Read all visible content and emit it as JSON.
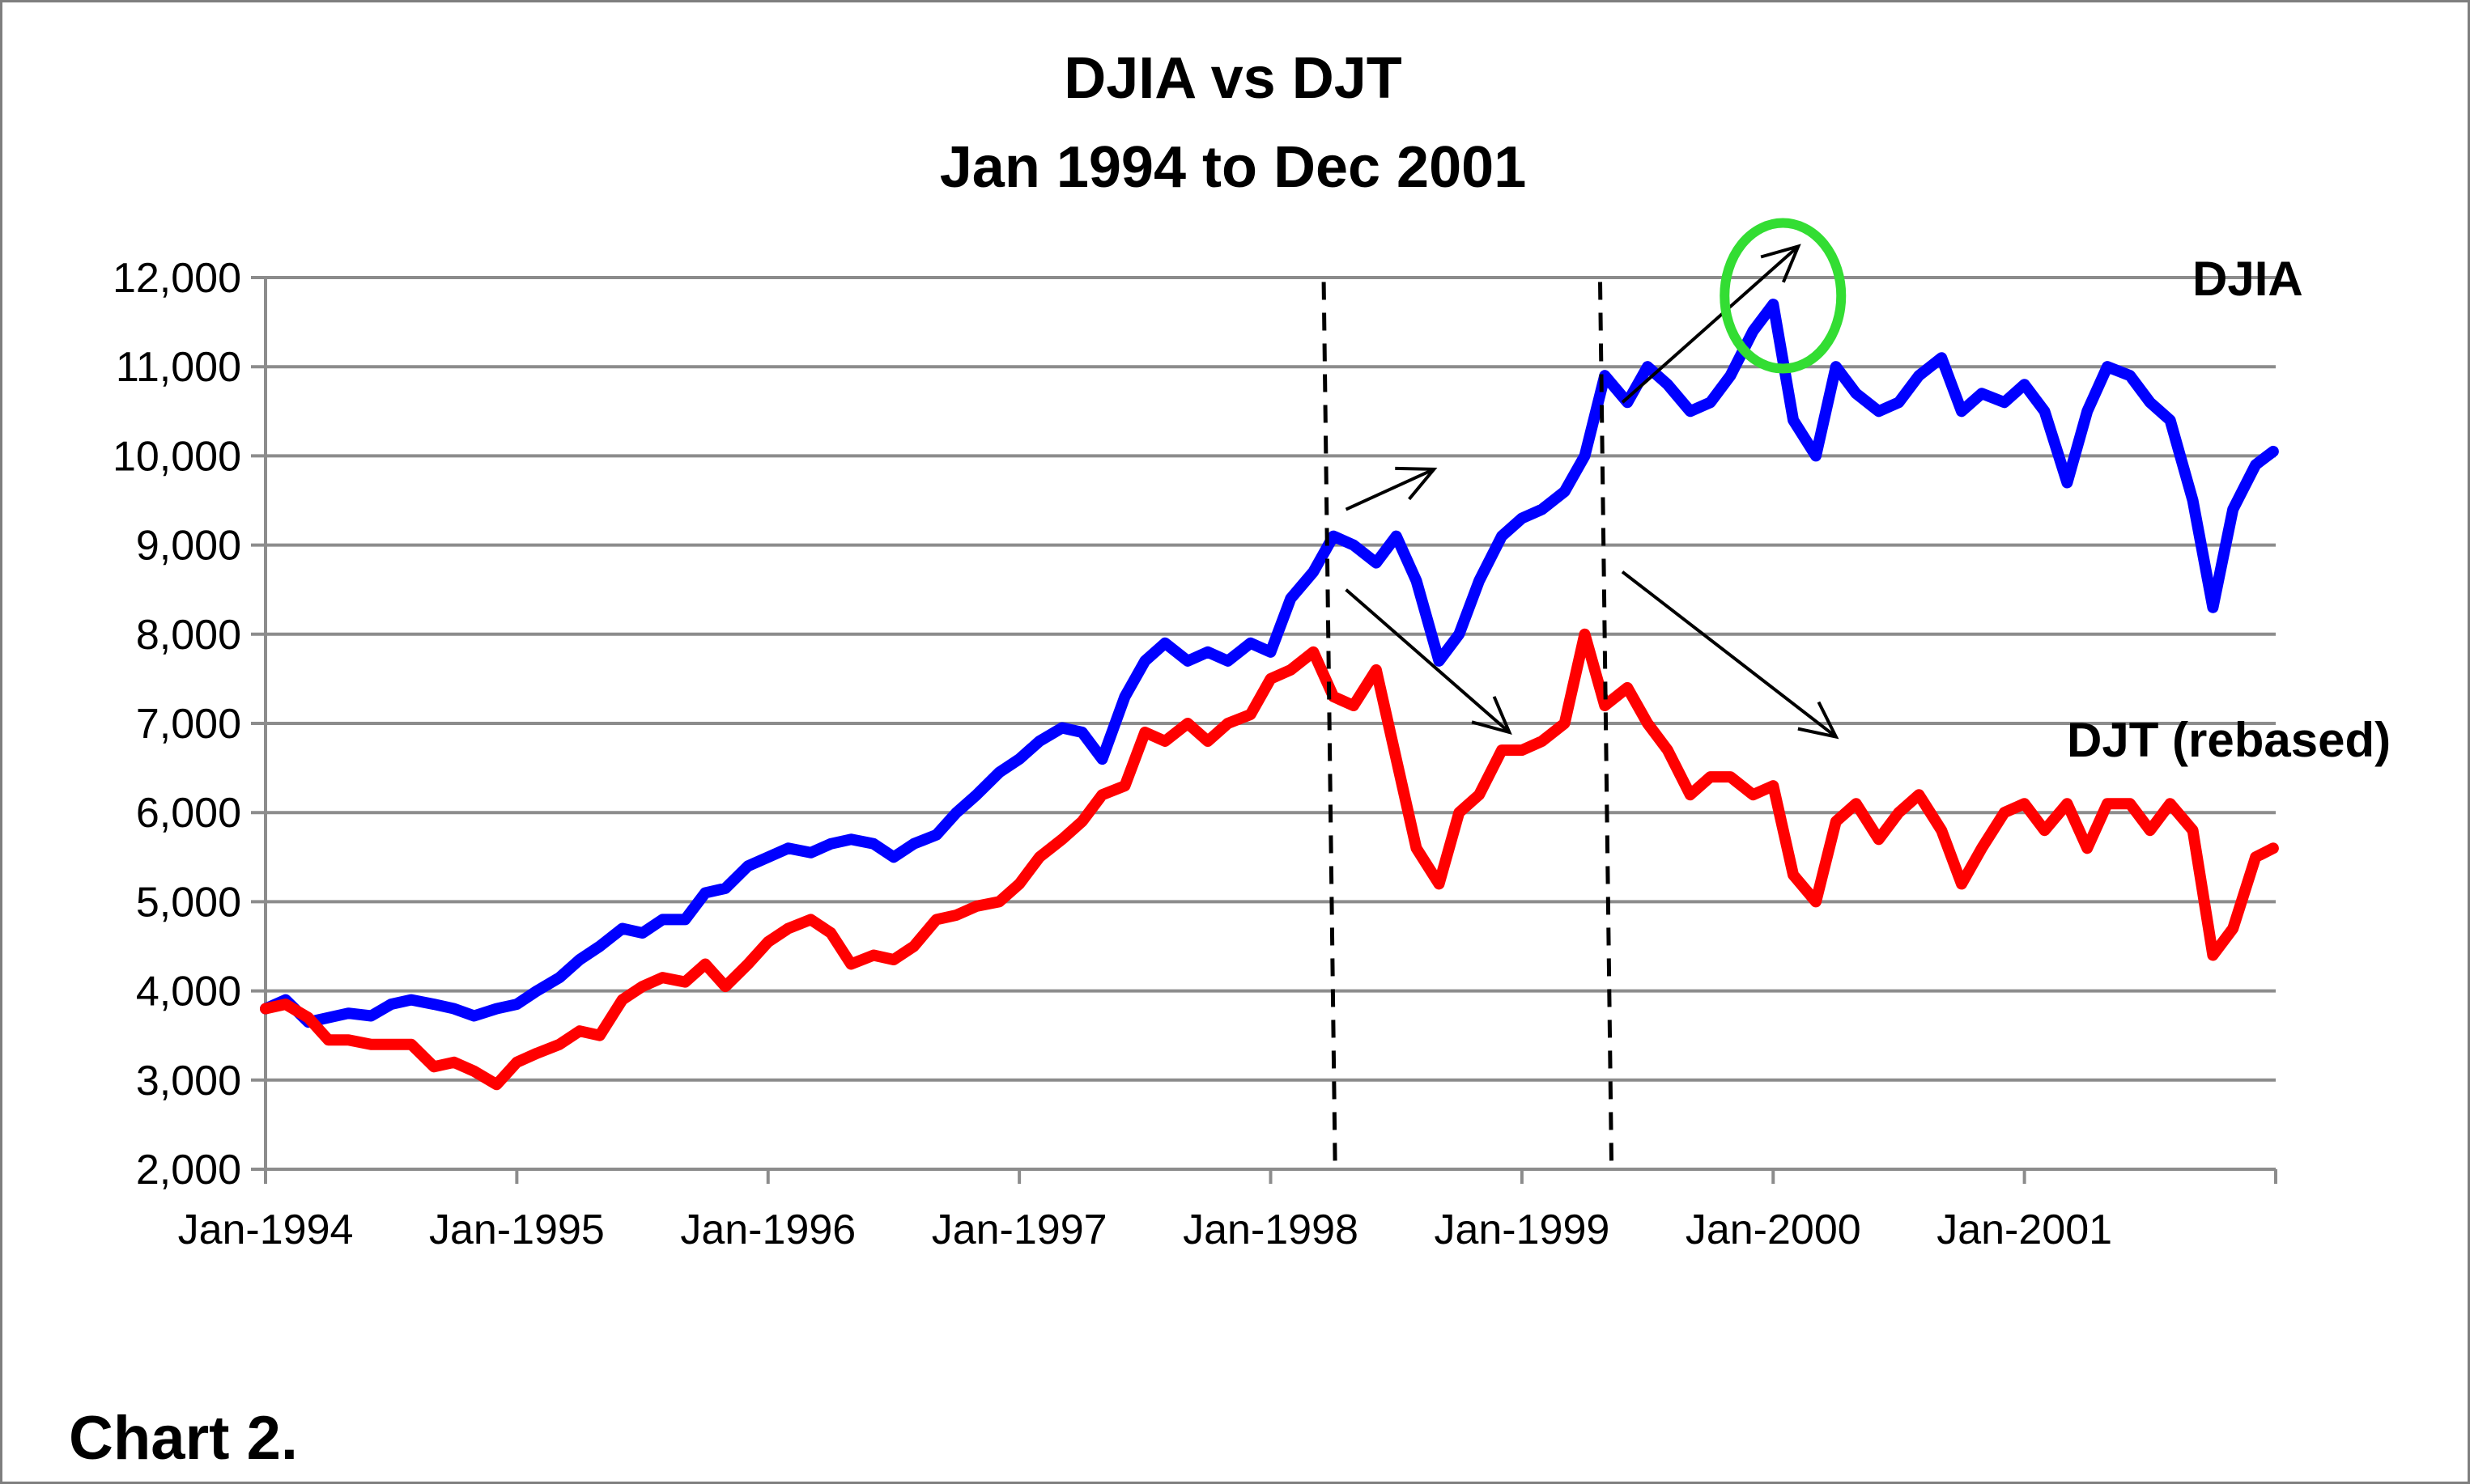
{
  "chart_data": {
    "type": "line",
    "title": "DJIA vs DJT",
    "subtitle": "Jan 1994 to Dec 2001",
    "caption": "Chart 2.",
    "xlabel": "",
    "ylabel": "",
    "ylim": [
      2000,
      12000
    ],
    "yticks": [
      2000,
      3000,
      4000,
      5000,
      6000,
      7000,
      8000,
      9000,
      10000,
      11000,
      12000
    ],
    "ytick_labels": [
      "2,000",
      "3,000",
      "4,000",
      "5,000",
      "6,000",
      "7,000",
      "8,000",
      "9,000",
      "10,000",
      "11,000",
      "12,000"
    ],
    "xlim": [
      1994.0,
      2002.0
    ],
    "xticks": [
      1994,
      1995,
      1996,
      1997,
      1998,
      1999,
      2000,
      2001
    ],
    "xtick_labels": [
      "Jan-1994",
      "Jan-1995",
      "Jan-1996",
      "Jan-1997",
      "Jan-1998",
      "Jan-1999",
      "Jan-2000",
      "Jan-2001"
    ],
    "grid": true,
    "series": [
      {
        "name": "DJIA",
        "color": "#0000ff",
        "x": [
          1994.0,
          1994.08,
          1994.17,
          1994.25,
          1994.33,
          1994.42,
          1994.5,
          1994.58,
          1994.67,
          1994.75,
          1994.83,
          1994.92,
          1995.0,
          1995.08,
          1995.17,
          1995.25,
          1995.33,
          1995.42,
          1995.5,
          1995.58,
          1995.67,
          1995.75,
          1995.83,
          1995.92,
          1996.0,
          1996.08,
          1996.17,
          1996.25,
          1996.33,
          1996.42,
          1996.5,
          1996.58,
          1996.67,
          1996.75,
          1996.83,
          1996.92,
          1997.0,
          1997.08,
          1997.17,
          1997.25,
          1997.33,
          1997.42,
          1997.5,
          1997.58,
          1997.67,
          1997.75,
          1997.83,
          1997.92,
          1998.0,
          1998.08,
          1998.17,
          1998.25,
          1998.33,
          1998.42,
          1998.5,
          1998.58,
          1998.67,
          1998.75,
          1998.83,
          1998.92,
          1999.0,
          1999.08,
          1999.17,
          1999.25,
          1999.33,
          1999.42,
          1999.5,
          1999.58,
          1999.67,
          1999.75,
          1999.83,
          1999.92,
          2000.0,
          2000.08,
          2000.17,
          2000.25,
          2000.33,
          2000.42,
          2000.5,
          2000.58,
          2000.67,
          2000.75,
          2000.83,
          2000.92,
          2001.0,
          2001.08,
          2001.17,
          2001.25,
          2001.33,
          2001.42,
          2001.5,
          2001.58,
          2001.67,
          2001.75,
          2001.83,
          2001.92,
          2001.99
        ],
        "values": [
          3800,
          3900,
          3650,
          3700,
          3750,
          3720,
          3850,
          3900,
          3850,
          3800,
          3720,
          3800,
          3850,
          4000,
          4150,
          4350,
          4500,
          4700,
          4650,
          4800,
          4800,
          5100,
          5150,
          5400,
          5500,
          5600,
          5550,
          5650,
          5700,
          5650,
          5500,
          5650,
          5750,
          6000,
          6200,
          6450,
          6600,
          6800,
          6950,
          6900,
          6600,
          7300,
          7700,
          7900,
          7700,
          7800,
          7700,
          7900,
          7800,
          8400,
          8700,
          9100,
          9000,
          8800,
          9100,
          8600,
          7700,
          8000,
          8600,
          9100,
          9300,
          9400,
          9600,
          10000,
          10900,
          10600,
          11000,
          10800,
          10500,
          10600,
          10900,
          11400,
          11700,
          10400,
          10000,
          11000,
          10700,
          10500,
          10600,
          10900,
          11100,
          10500,
          10700,
          10600,
          10800,
          10500,
          9700,
          10500,
          11000,
          10900,
          10600,
          10400,
          9500,
          8300,
          9400,
          9900,
          10050
        ]
      },
      {
        "name": "DJT (rebased)",
        "color": "#ff0000",
        "x": [
          1994.0,
          1994.08,
          1994.17,
          1994.25,
          1994.33,
          1994.42,
          1994.5,
          1994.58,
          1994.67,
          1994.75,
          1994.83,
          1994.92,
          1995.0,
          1995.08,
          1995.17,
          1995.25,
          1995.33,
          1995.42,
          1995.5,
          1995.58,
          1995.67,
          1995.75,
          1995.83,
          1995.92,
          1996.0,
          1996.08,
          1996.17,
          1996.25,
          1996.33,
          1996.42,
          1996.5,
          1996.58,
          1996.67,
          1996.75,
          1996.83,
          1996.92,
          1997.0,
          1997.08,
          1997.17,
          1997.25,
          1997.33,
          1997.42,
          1997.5,
          1997.58,
          1997.67,
          1997.75,
          1997.83,
          1997.92,
          1998.0,
          1998.08,
          1998.17,
          1998.25,
          1998.33,
          1998.42,
          1998.5,
          1998.58,
          1998.67,
          1998.75,
          1998.83,
          1998.92,
          1999.0,
          1999.08,
          1999.17,
          1999.25,
          1999.33,
          1999.42,
          1999.5,
          1999.58,
          1999.67,
          1999.75,
          1999.83,
          1999.92,
          2000.0,
          2000.08,
          2000.17,
          2000.25,
          2000.33,
          2000.42,
          2000.5,
          2000.58,
          2000.67,
          2000.75,
          2000.83,
          2000.92,
          2001.0,
          2001.08,
          2001.17,
          2001.25,
          2001.33,
          2001.42,
          2001.5,
          2001.58,
          2001.67,
          2001.75,
          2001.83,
          2001.92,
          2001.99
        ],
        "values": [
          3800,
          3850,
          3700,
          3450,
          3450,
          3400,
          3400,
          3400,
          3150,
          3200,
          3100,
          2950,
          3200,
          3300,
          3400,
          3550,
          3500,
          3900,
          4050,
          4150,
          4100,
          4300,
          4050,
          4300,
          4550,
          4700,
          4800,
          4650,
          4300,
          4400,
          4350,
          4500,
          4800,
          4850,
          4950,
          5000,
          5200,
          5500,
          5700,
          5900,
          6200,
          6300,
          6900,
          6800,
          7000,
          6800,
          7000,
          7100,
          7500,
          7600,
          7800,
          7300,
          7200,
          7600,
          6600,
          5600,
          5200,
          6000,
          6200,
          6700,
          6700,
          6800,
          7000,
          8000,
          7200,
          7400,
          7000,
          6700,
          6200,
          6400,
          6400,
          6200,
          6300,
          5300,
          5000,
          5900,
          6100,
          5700,
          6000,
          6200,
          5800,
          5200,
          5600,
          6000,
          6100,
          5800,
          6100,
          5600,
          6100,
          6100,
          5800,
          6100,
          5800,
          4400,
          4700,
          5500,
          5600
        ]
      }
    ],
    "annotations": {
      "series_labels": [
        "DJIA",
        "DJT (rebased)"
      ],
      "vertical_dashed_lines_x": [
        1998.25,
        1999.35
      ],
      "highlight_circle": {
        "x": 2000.0,
        "y": 11750,
        "color": "#33dd33"
      },
      "arrows": [
        {
          "from": [
            1998.3,
            9400
          ],
          "to": [
            1998.65,
            9850
          ]
        },
        {
          "from": [
            1998.3,
            8500
          ],
          "to": [
            1998.95,
            6900
          ]
        },
        {
          "from": [
            1999.4,
            10600
          ],
          "to": [
            2000.1,
            12350
          ]
        },
        {
          "from": [
            1999.4,
            8700
          ],
          "to": [
            2000.25,
            6850
          ]
        }
      ]
    }
  }
}
